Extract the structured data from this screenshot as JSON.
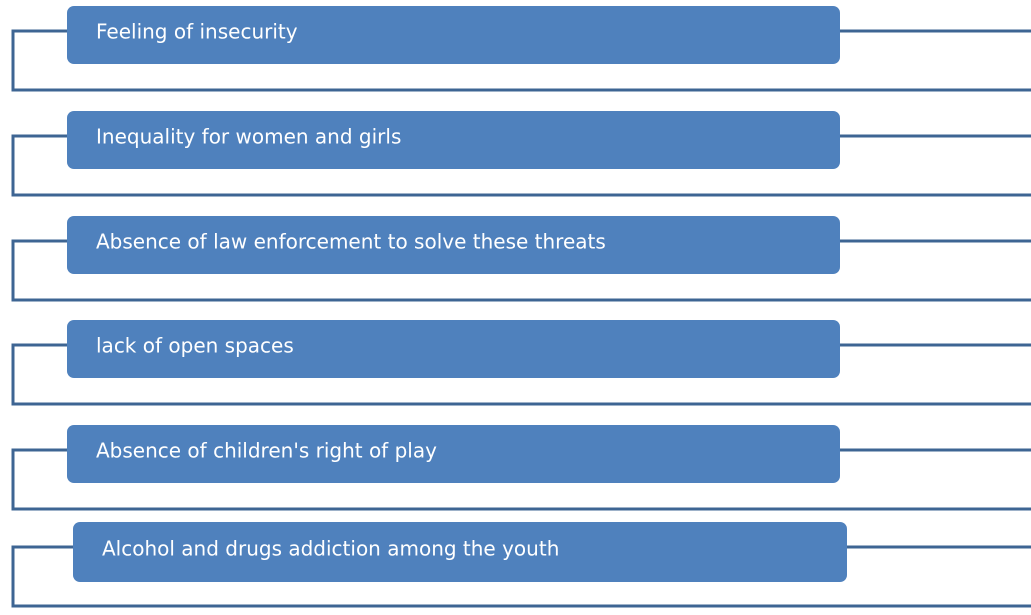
{
  "items": [
    {
      "label": "Feeling of insecurity"
    },
    {
      "label": "Inequality for women and girls"
    },
    {
      "label": "Absence of law enforcement to solve these threats"
    },
    {
      "label": "lack of open spaces"
    },
    {
      "label": "Absence of children's right of play"
    },
    {
      "label": "Alcohol and drugs addiction among the youth"
    }
  ]
}
